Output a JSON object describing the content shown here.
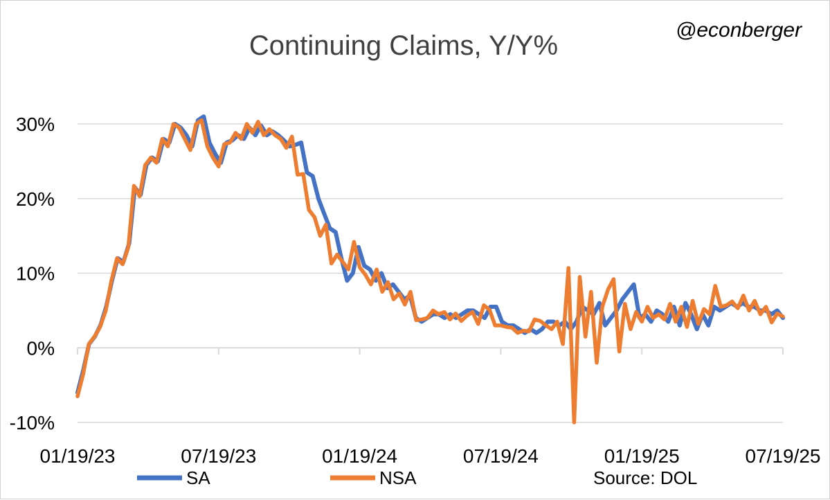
{
  "chart_data": {
    "type": "line",
    "title": "Continuing Claims, Y/Y%",
    "handle": "@econberger",
    "source": "Source: DOL",
    "x_ticks": [
      "01/19/23",
      "07/19/23",
      "01/19/24",
      "07/19/24",
      "01/19/25",
      "07/19/25"
    ],
    "y_ticks": [
      "-10%",
      "0%",
      "10%",
      "20%",
      "30%"
    ],
    "ylim": [
      -10,
      30
    ],
    "xlim": [
      "01/19/23",
      "07/19/25"
    ],
    "grid": true,
    "legend_position": "bottom",
    "colors": {
      "SA": "#4472C4",
      "NSA": "#ED7D31",
      "grid": "#d9d9d9",
      "axis": "#d9d9d9"
    },
    "series": [
      {
        "name": "SA",
        "values": [
          -6.0,
          -3.0,
          0.5,
          1.5,
          3.0,
          5.5,
          9.0,
          12.0,
          11.5,
          14.0,
          21.5,
          20.5,
          24.5,
          25.5,
          25.0,
          28.0,
          27.5,
          30.0,
          29.5,
          28.5,
          27.0,
          30.5,
          31.0,
          27.5,
          26.0,
          24.8,
          27.5,
          27.8,
          28.5,
          28.0,
          29.5,
          28.5,
          29.8,
          28.5,
          29.0,
          28.5,
          27.8,
          27.0,
          27.2,
          27.5,
          23.5,
          23.0,
          20.0,
          18.0,
          16.0,
          15.5,
          12.0,
          9.0,
          10.0,
          13.5,
          11.0,
          10.5,
          9.0,
          10.0,
          8.0,
          8.5,
          7.5,
          6.5,
          7.0,
          4.0,
          3.5,
          4.0,
          4.5,
          4.5,
          4.0,
          4.5,
          4.0,
          4.5,
          5.0,
          5.0,
          4.5,
          4.0,
          5.5,
          5.5,
          3.5,
          3.0,
          3.0,
          2.5,
          2.0,
          2.5,
          2.0,
          2.5,
          3.5,
          3.5,
          3.0,
          3.5,
          2.5,
          3.5,
          5.5,
          5.0,
          4.5,
          6.0,
          3.0,
          4.0,
          5.0,
          6.5,
          7.5,
          8.5,
          4.0,
          4.5,
          3.5,
          5.0,
          4.5,
          3.5,
          5.5,
          3.0,
          6.0,
          4.5,
          2.5,
          4.5,
          3.0,
          5.5,
          5.0,
          5.5,
          6.0,
          5.5,
          6.0,
          5.5,
          5.5,
          5.0,
          5.0,
          4.5,
          5.0,
          4.0
        ]
      },
      {
        "name": "NSA",
        "values": [
          -6.5,
          -3.5,
          0.5,
          1.5,
          2.8,
          5.0,
          9.0,
          12.0,
          11.2,
          13.5,
          21.7,
          20.3,
          24.5,
          25.5,
          24.8,
          28.0,
          27.0,
          30.0,
          29.5,
          28.0,
          26.5,
          30.0,
          30.5,
          27.0,
          25.5,
          24.3,
          27.3,
          27.5,
          28.8,
          28.0,
          30.0,
          28.8,
          30.3,
          28.5,
          29.3,
          28.5,
          28.0,
          26.8,
          28.3,
          23.2,
          23.3,
          18.5,
          17.5,
          15.0,
          16.5,
          11.3,
          12.5,
          11.5,
          10.5,
          14.2,
          10.8,
          9.8,
          8.5,
          10.5,
          7.5,
          8.8,
          6.5,
          7.3,
          5.8,
          7.5,
          3.7,
          3.8,
          4.0,
          5.0,
          4.5,
          4.8,
          3.8,
          4.6,
          3.6,
          4.3,
          4.8,
          3.2,
          5.7,
          5.1,
          3.0,
          3.0,
          2.8,
          2.7,
          2.0,
          2.3,
          2.2,
          3.8,
          3.6,
          3.0,
          2.5,
          3.5,
          0.5,
          10.7,
          -10.0,
          9.5,
          1.5,
          7.5,
          -2.0,
          5.5,
          7.8,
          9.2,
          -0.5,
          5.9,
          2.5,
          4.8,
          3.5,
          5.5,
          4.0,
          4.5,
          3.8,
          5.9,
          3.5,
          5.5,
          2.8,
          6.3,
          3.2,
          5.2,
          4.5,
          8.3,
          5.5,
          5.7,
          6.2,
          5.3,
          7.0,
          5.0,
          6.3,
          4.5,
          5.5,
          3.4,
          4.6,
          4.2
        ]
      }
    ]
  }
}
